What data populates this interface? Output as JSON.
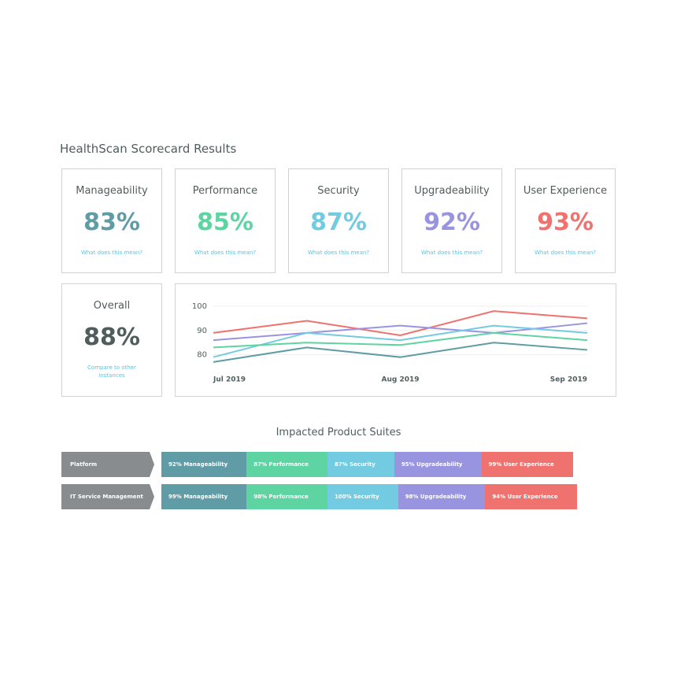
{
  "header": {
    "title": "HealthScan Scorecard Results"
  },
  "cards": [
    {
      "title": "Manageability",
      "value": "83%",
      "link": "What does this mean?",
      "color": "#5f9ca6"
    },
    {
      "title": "Performance",
      "value": "85%",
      "link": "What does this mean?",
      "color": "#5dd4a2"
    },
    {
      "title": "Security",
      "value": "87%",
      "link": "What does this mean?",
      "color": "#72cbe0"
    },
    {
      "title": "Upgradeability",
      "value": "92%",
      "link": "What does this mean?",
      "color": "#9994e0"
    },
    {
      "title": "User Experience",
      "value": "93%",
      "link": "What does this mean?",
      "color": "#f0726e"
    }
  ],
  "overall": {
    "title": "Overall",
    "value": "88%",
    "link": "Compare to other instances",
    "color": "#4f5d5d"
  },
  "chart_data": {
    "type": "line",
    "categories": [
      "Jul 2019",
      null,
      "Aug 2019",
      null,
      "Sep 2019"
    ],
    "ylim": [
      75,
      100
    ],
    "yticks": [
      80,
      90,
      100
    ],
    "grid": true,
    "series": [
      {
        "color": "#f0726e",
        "values": [
          89,
          94,
          88,
          98,
          95
        ]
      },
      {
        "color": "#9994e0",
        "values": [
          86,
          89,
          92,
          89,
          93
        ]
      },
      {
        "color": "#72cbe0",
        "values": [
          79,
          89,
          86,
          92,
          89
        ]
      },
      {
        "color": "#5dd4a2",
        "values": [
          83,
          85,
          84,
          89,
          86
        ]
      },
      {
        "color": "#5f9ca6",
        "values": [
          77,
          83,
          79,
          85,
          82
        ]
      }
    ]
  },
  "suites": {
    "title": "Impacted Product Suites",
    "rows": [
      {
        "name": "Platform",
        "segments": [
          "92% Manageability",
          "87% Performance",
          "87% Security",
          "95% Upgradeability",
          "99% User Experience"
        ]
      },
      {
        "name": "IT Service Management",
        "segments": [
          "99% Manageability",
          "98% Performance",
          "100% Security",
          "98% Upgradeability",
          "94% User Experience"
        ]
      }
    ]
  }
}
